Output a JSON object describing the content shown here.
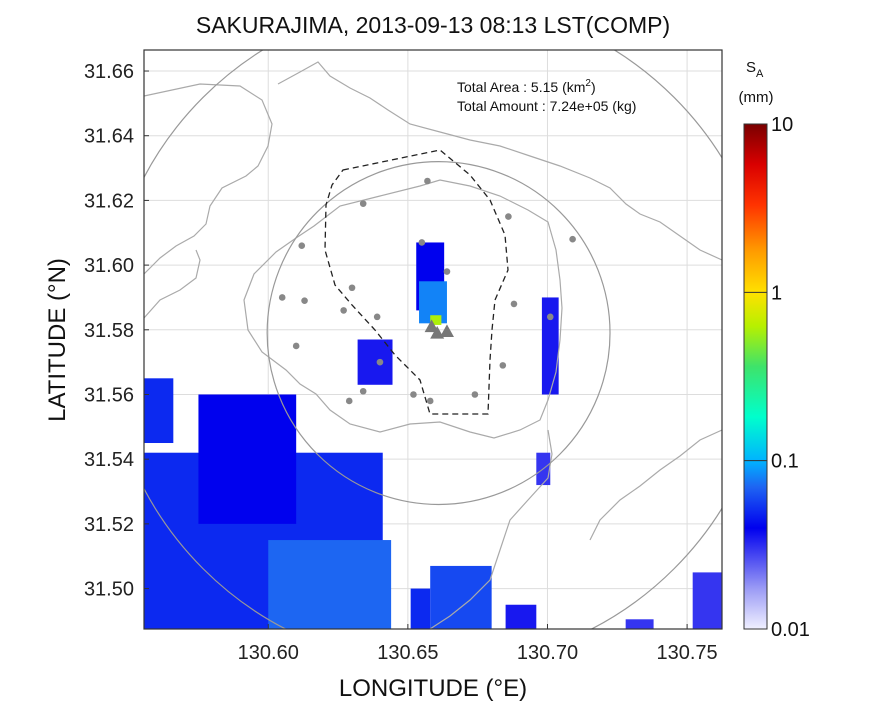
{
  "chart_data": {
    "type": "heatmap",
    "title": "SAKURAJIMA, 2013-09-13 08:13 LST(COMP)",
    "xlabel": "LONGITUDE (°E)",
    "ylabel": "LATITUDE (°N)",
    "xlim": [
      130.5555,
      130.7625
    ],
    "ylim": [
      31.4875,
      31.6665
    ],
    "xticks": [
      "130.60",
      "130.65",
      "130.70",
      "130.75"
    ],
    "yticks": [
      "31.50",
      "31.52",
      "31.54",
      "31.56",
      "31.58",
      "31.60",
      "31.62",
      "31.64",
      "31.66"
    ],
    "grid": true,
    "annotations": {
      "area_label": "Total Area   : 5.15 (km",
      "area_sup": "2",
      "area_close": ")",
      "amount_label": "Total Amount : 7.24e+05 (kg)"
    },
    "colorbar": {
      "symbol": "S",
      "symbol_sub": "A",
      "unit": "(mm)",
      "scale": "log",
      "range": [
        0.01,
        10
      ],
      "tick_labels": [
        "10",
        "1",
        "0.1",
        "0.01"
      ],
      "tick_values": [
        10,
        1,
        0.1,
        0.01
      ]
    },
    "colors": {
      "grid": "#dddddd",
      "coast": "#aaaaaa",
      "ring": "#999999",
      "station": "#888888"
    },
    "range_rings": [
      {
        "center": [
          130.661,
          31.579
        ],
        "radius_deg_lat": 0.053
      },
      {
        "center": [
          130.661,
          31.579
        ],
        "radius_deg_lat": 0.103
      }
    ],
    "vents": [
      {
        "lon": 130.6585,
        "lat": 31.581
      },
      {
        "lon": 130.6605,
        "lat": 31.579
      },
      {
        "lon": 130.664,
        "lat": 31.5795
      }
    ],
    "stations": [
      {
        "lon": 130.657,
        "lat": 31.626
      },
      {
        "lon": 130.634,
        "lat": 31.619
      },
      {
        "lon": 130.686,
        "lat": 31.615
      },
      {
        "lon": 130.612,
        "lat": 31.606
      },
      {
        "lon": 130.655,
        "lat": 31.607
      },
      {
        "lon": 130.664,
        "lat": 31.598
      },
      {
        "lon": 130.709,
        "lat": 31.608
      },
      {
        "lon": 130.605,
        "lat": 31.59
      },
      {
        "lon": 130.613,
        "lat": 31.589
      },
      {
        "lon": 130.63,
        "lat": 31.593
      },
      {
        "lon": 130.627,
        "lat": 31.586
      },
      {
        "lon": 130.639,
        "lat": 31.584
      },
      {
        "lon": 130.688,
        "lat": 31.588
      },
      {
        "lon": 130.701,
        "lat": 31.584
      },
      {
        "lon": 130.61,
        "lat": 31.575
      },
      {
        "lon": 130.64,
        "lat": 31.57
      },
      {
        "lon": 130.684,
        "lat": 31.569
      },
      {
        "lon": 130.634,
        "lat": 31.561
      },
      {
        "lon": 130.652,
        "lat": 31.56
      },
      {
        "lon": 130.674,
        "lat": 31.56
      },
      {
        "lon": 130.629,
        "lat": 31.558
      },
      {
        "lon": 130.658,
        "lat": 31.558
      }
    ],
    "ash_cells": [
      {
        "lon0": 130.5555,
        "lon1": 130.641,
        "lat0": 31.4875,
        "lat1": 31.542,
        "value": 0.05
      },
      {
        "lon0": 130.575,
        "lon1": 130.61,
        "lat0": 31.52,
        "lat1": 31.56,
        "value": 0.04
      },
      {
        "lon0": 130.6,
        "lon1": 130.644,
        "lat0": 31.4875,
        "lat1": 31.515,
        "value": 0.07
      },
      {
        "lon0": 130.5555,
        "lon1": 130.566,
        "lat0": 31.545,
        "lat1": 31.565,
        "value": 0.05
      },
      {
        "lon0": 130.658,
        "lon1": 130.68,
        "lat0": 31.4875,
        "lat1": 31.507,
        "value": 0.06
      },
      {
        "lon0": 130.651,
        "lon1": 130.658,
        "lat0": 31.4875,
        "lat1": 31.5,
        "value": 0.05
      },
      {
        "lon0": 130.653,
        "lon1": 130.663,
        "lat0": 31.586,
        "lat1": 31.607,
        "value": 0.04
      },
      {
        "lon0": 130.654,
        "lon1": 130.664,
        "lat0": 31.582,
        "lat1": 31.595,
        "value": 0.08
      },
      {
        "lon0": 130.658,
        "lon1": 130.662,
        "lat0": 31.5815,
        "lat1": 31.5845,
        "value": 0.6
      },
      {
        "lon0": 130.632,
        "lon1": 130.6445,
        "lat0": 31.563,
        "lat1": 31.577,
        "value": 0.035
      },
      {
        "lon0": 130.698,
        "lon1": 130.704,
        "lat0": 31.56,
        "lat1": 31.59,
        "value": 0.035
      },
      {
        "lon0": 130.696,
        "lon1": 130.701,
        "lat0": 31.532,
        "lat1": 31.542,
        "value": 0.03
      },
      {
        "lon0": 130.752,
        "lon1": 130.7625,
        "lat0": 31.4875,
        "lat1": 31.505,
        "value": 0.03
      },
      {
        "lon0": 130.728,
        "lon1": 130.738,
        "lat0": 31.4875,
        "lat1": 31.4905,
        "value": 0.03
      },
      {
        "lon0": 130.685,
        "lon1": 130.696,
        "lat0": 31.4875,
        "lat1": 31.495,
        "value": 0.035
      }
    ]
  }
}
